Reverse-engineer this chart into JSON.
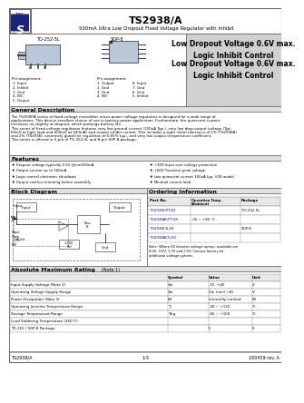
{
  "title": "TS2938/A",
  "subtitle": "500mA Ultra Low Dropout Fixed Voltage Regulator with Inhibit",
  "logo_color": "#1a237e",
  "highlight_text": "Low Dropout Voltage 0.6V max.\nLogic Inhibit Control",
  "body_bg": "#ffffff",
  "footer_text_left": "TS2938/A",
  "footer_text_mid": "1-5",
  "footer_text_right": "200459 rev. A",
  "general_desc_title": "General Description",
  "general_desc_lines": [
    "The TS2938/A series of fixed-voltage monolithic micro-power voltage regulators is designed for a wide range of",
    "applications. This device excellent choice of use in battery-power application. Furthermore, the quiescent current",
    "increases no slightly at dropout, which prolongs battery life.",
    "This series of fixed-voltage regulators features very low ground current (100uA Typ.), very low drop output voltage (Typ.",
    "60mV at light load and 600mV at 500mA) and output inhibit control. This includes a tight initial tolerance of 1% (TS2938A)",
    "and 2% (TS2938), extremely good line regulation of 0.05% typ., and very low output temperature coefficient.",
    "This series is offered in 5-pin of TO-252-5L and 8-pin SOP-8 package."
  ],
  "features_title": "Features",
  "features_left": [
    "Dropout voltage typically 0.5V @Icm500mA",
    "Output current up to 500mA",
    "Logic control electronic shutdown",
    "Output cost/no trimming before assembly"
  ],
  "features_right": [
    "+30V Input over voltage protection",
    "+60V Transient peak voltage",
    "Low quiescent current 100uA typ. (ON mode)",
    "Minimal current load"
  ],
  "block_diagram_title": "Block Diagram",
  "ordering_title": "Ordering Information",
  "ordering_headers": [
    "Part No.",
    "Operation Temp.\n(Ambient)",
    "Package"
  ],
  "ordering_rows": [
    [
      "TS2938CPT-XX",
      "",
      "TO-252-5L"
    ],
    [
      "TS2938ACPT-XX",
      "-25 ~ +85 °C",
      ""
    ],
    [
      "TS2938CS-XX",
      "",
      "SOP-8"
    ],
    [
      "TS2938ACS-XX",
      "",
      ""
    ]
  ],
  "ordering_note": "Note: Where XX denotes voltage option, available are\n8.0V, 9.0V, 3.3V and 2.5V. Contact factory for\nadditional voltage options.",
  "abs_max_title": "Absolute Maximum Rating",
  "abs_max_note": "(Note 1)",
  "abs_max_rows": [
    [
      "Input Supply Voltage (Note 2)",
      "Vin",
      "-15  +40",
      "V"
    ],
    [
      "Operating Voltage Supply Range",
      "Vin",
      "Vin (min)~40",
      "V"
    ],
    [
      "Power Dissipation (Note 3)",
      "Pd",
      "Internally Limited",
      "W"
    ],
    [
      "Operating Junction Temperature Range",
      "Tj",
      "-40 ~ +125",
      "°C"
    ],
    [
      "Storage Temperature Range",
      "Tstg",
      "-65 ~ +150",
      "°C"
    ],
    [
      "Lead Soldering Temperature (260°C)",
      "",
      "",
      ""
    ],
    [
      "TO-252 / SOP-8 Package",
      "",
      "5",
      "S"
    ]
  ],
  "pin_to252_title": "TO-252-5L",
  "pin_sop8_title": "SOP-8",
  "to252_pins": [
    "1. Input",
    "2. Inhibit",
    "3. Gnd",
    "4. N/C",
    "5. Output"
  ],
  "sop8_pins_left": [
    "1. Output",
    "2. Gnd",
    "3. Gnd",
    "4. N/C"
  ],
  "sop8_pins_right": [
    "8. Input",
    "7. Gnd",
    "6. Gnd",
    "5. Inhibit"
  ]
}
